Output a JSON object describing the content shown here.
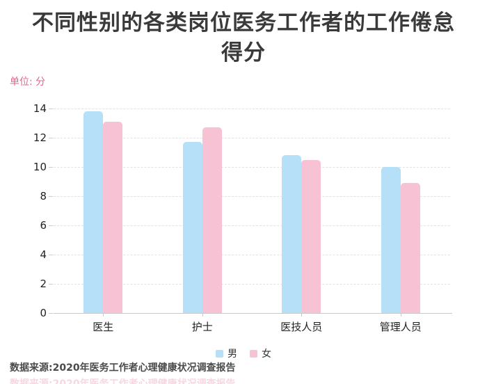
{
  "title": {
    "line1": "不同性别的各类岗位医务工作者的工作倦怠",
    "line2": "得分",
    "full": "不同性别的各类岗位医务工作者的工作倦怠得分"
  },
  "unit_label": "单位: 分",
  "chart_data": {
    "type": "bar",
    "title": "不同性别的各类岗位医务工作者的工作倦怠得分",
    "unit": "单位: 分",
    "categories": [
      "医生",
      "护士",
      "医技人员",
      "管理人员"
    ],
    "category_keys": [
      "doctor",
      "nurse",
      "medical-technical-staff",
      "management-staff"
    ],
    "series": [
      {
        "name": "男",
        "key": "male",
        "color": "#b5e0f8",
        "values": [
          13.8,
          11.7,
          10.8,
          10.0
        ]
      },
      {
        "name": "女",
        "key": "female",
        "color": "#f6c2d4",
        "values": [
          13.1,
          12.7,
          10.5,
          8.9
        ]
      }
    ],
    "ylim": [
      0,
      14
    ],
    "yticks": [
      0,
      2,
      4,
      6,
      8,
      10,
      12,
      14
    ],
    "xlabel": "",
    "ylabel": "分",
    "grid": "horizontal-dashed",
    "legend_position": "bottom-center"
  },
  "legend": {
    "items": [
      {
        "label": "男",
        "color": "#b5e0f8"
      },
      {
        "label": "女",
        "color": "#f6c2d4"
      }
    ]
  },
  "footer": {
    "source": "数据来源:2020年医务工作者心理健康状况调查报告"
  },
  "colors": {
    "male_bar": "#b5e0f8",
    "female_bar": "#f6c2d4",
    "title_text": "#3a3a3a",
    "unit_text": "#d9688d",
    "grid_dashed": "#e2e2e2",
    "axis_line": "#c9c9c9",
    "tick_label": "#222222",
    "source_text": "#4a4a4a"
  }
}
